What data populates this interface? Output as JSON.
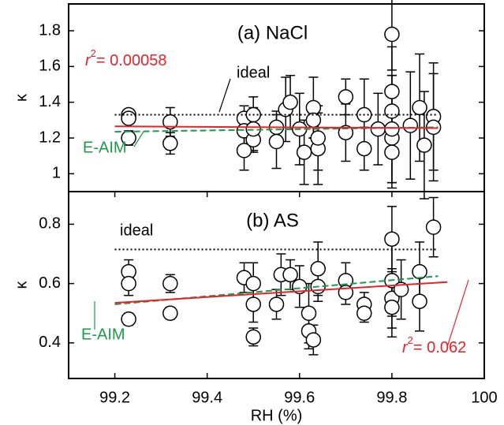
{
  "chart_data": [
    {
      "type": "scatter",
      "title": "(a) NaCl",
      "ylabel": "κ",
      "xlim": [
        99.1,
        100
      ],
      "ylim": [
        0.9,
        1.95
      ],
      "yticks": [
        1,
        1.2,
        1.4,
        1.6,
        1.8
      ],
      "x": [
        99.23,
        99.23,
        99.23,
        99.32,
        99.32,
        99.48,
        99.48,
        99.48,
        99.5,
        99.5,
        99.5,
        99.55,
        99.55,
        99.57,
        99.58,
        99.6,
        99.61,
        99.63,
        99.63,
        99.64,
        99.64,
        99.7,
        99.7,
        99.74,
        99.74,
        99.77,
        99.8,
        99.8,
        99.8,
        99.8,
        99.8,
        99.8,
        99.84,
        99.86,
        99.87,
        99.89,
        99.89
      ],
      "values": [
        1.33,
        1.31,
        1.2,
        1.29,
        1.17,
        1.31,
        1.13,
        1.24,
        1.33,
        1.19,
        1.25,
        1.26,
        1.18,
        1.36,
        1.4,
        1.25,
        1.12,
        1.37,
        1.3,
        1.14,
        1.2,
        1.43,
        1.23,
        1.33,
        1.14,
        1.25,
        1.78,
        1.46,
        1.35,
        1.2,
        1.12,
        1.25,
        1.27,
        1.37,
        1.16,
        1.32,
        1.26
      ],
      "errors": [
        0.03,
        0.03,
        0.04,
        0.08,
        0.06,
        0.07,
        0.11,
        0.08,
        0.1,
        0.07,
        0.12,
        0.09,
        0.15,
        0.18,
        0.15,
        0.2,
        0.18,
        0.17,
        0.1,
        0.2,
        0.18,
        0.1,
        0.16,
        0.2,
        0.12,
        0.2,
        0.2,
        0.25,
        0.2,
        0.25,
        0.2,
        0.3,
        0.3,
        0.3,
        0.3,
        0.3,
        0.3
      ],
      "lines": [
        {
          "label": "ideal",
          "color": "#000000",
          "style": "dotted",
          "x": [
            99.2,
            99.9
          ],
          "values": [
            1.33,
            1.33
          ]
        },
        {
          "label": "E-AIM",
          "color": "#1a9a4a",
          "style": "dashed",
          "x": [
            99.2,
            99.9
          ],
          "values": [
            1.235,
            1.26
          ]
        },
        {
          "symbol": "r",
          "exponent": "2",
          "label": "= 0.00058",
          "color": "#e8212a",
          "style": "solid",
          "x": [
            99.2,
            99.9
          ],
          "values": [
            1.265,
            1.255
          ]
        }
      ]
    },
    {
      "type": "scatter",
      "title": "(b) AS",
      "ylabel": "κ",
      "xlabel": "RH (%)",
      "xlim": [
        99.1,
        100
      ],
      "ylim": [
        0.28,
        0.91
      ],
      "yticks": [
        0.4,
        0.6,
        0.8
      ],
      "xticks": [
        99.2,
        99.4,
        99.6,
        99.8,
        100
      ],
      "x": [
        99.23,
        99.23,
        99.23,
        99.32,
        99.32,
        99.48,
        99.5,
        99.5,
        99.5,
        99.55,
        99.56,
        99.58,
        99.6,
        99.62,
        99.62,
        99.63,
        99.64,
        99.64,
        99.7,
        99.7,
        99.74,
        99.74,
        99.8,
        99.8,
        99.8,
        99.8,
        99.82,
        99.86,
        99.86,
        99.89
      ],
      "values": [
        0.64,
        0.6,
        0.48,
        0.6,
        0.5,
        0.62,
        0.6,
        0.53,
        0.42,
        0.53,
        0.63,
        0.63,
        0.59,
        0.5,
        0.44,
        0.41,
        0.65,
        0.59,
        0.61,
        0.57,
        0.53,
        0.5,
        0.75,
        0.61,
        0.55,
        0.52,
        0.58,
        0.64,
        0.54,
        0.79
      ],
      "errors": [
        0.04,
        0.04,
        0.02,
        0.03,
        0.02,
        0.05,
        0.07,
        0.06,
        0.03,
        0.05,
        0.07,
        0.05,
        0.07,
        0.1,
        0.06,
        0.05,
        0.09,
        0.05,
        0.06,
        0.04,
        0.04,
        0.03,
        0.11,
        0.12,
        0.1,
        0.1,
        0.1,
        0.1,
        0.1,
        0.1
      ],
      "lines": [
        {
          "label": "ideal",
          "color": "#000000",
          "style": "dotted",
          "x": [
            99.2,
            99.9
          ],
          "values": [
            0.715,
            0.715
          ]
        },
        {
          "label": "E-AIM",
          "color": "#1a9a4a",
          "style": "dashed",
          "x": [
            99.2,
            99.9
          ],
          "values": [
            0.53,
            0.625
          ]
        },
        {
          "symbol": "r",
          "exponent": "2",
          "label": "= 0.062",
          "color": "#e8212a",
          "style": "solid",
          "x": [
            99.2,
            99.92
          ],
          "values": [
            0.535,
            0.605
          ]
        }
      ]
    }
  ]
}
